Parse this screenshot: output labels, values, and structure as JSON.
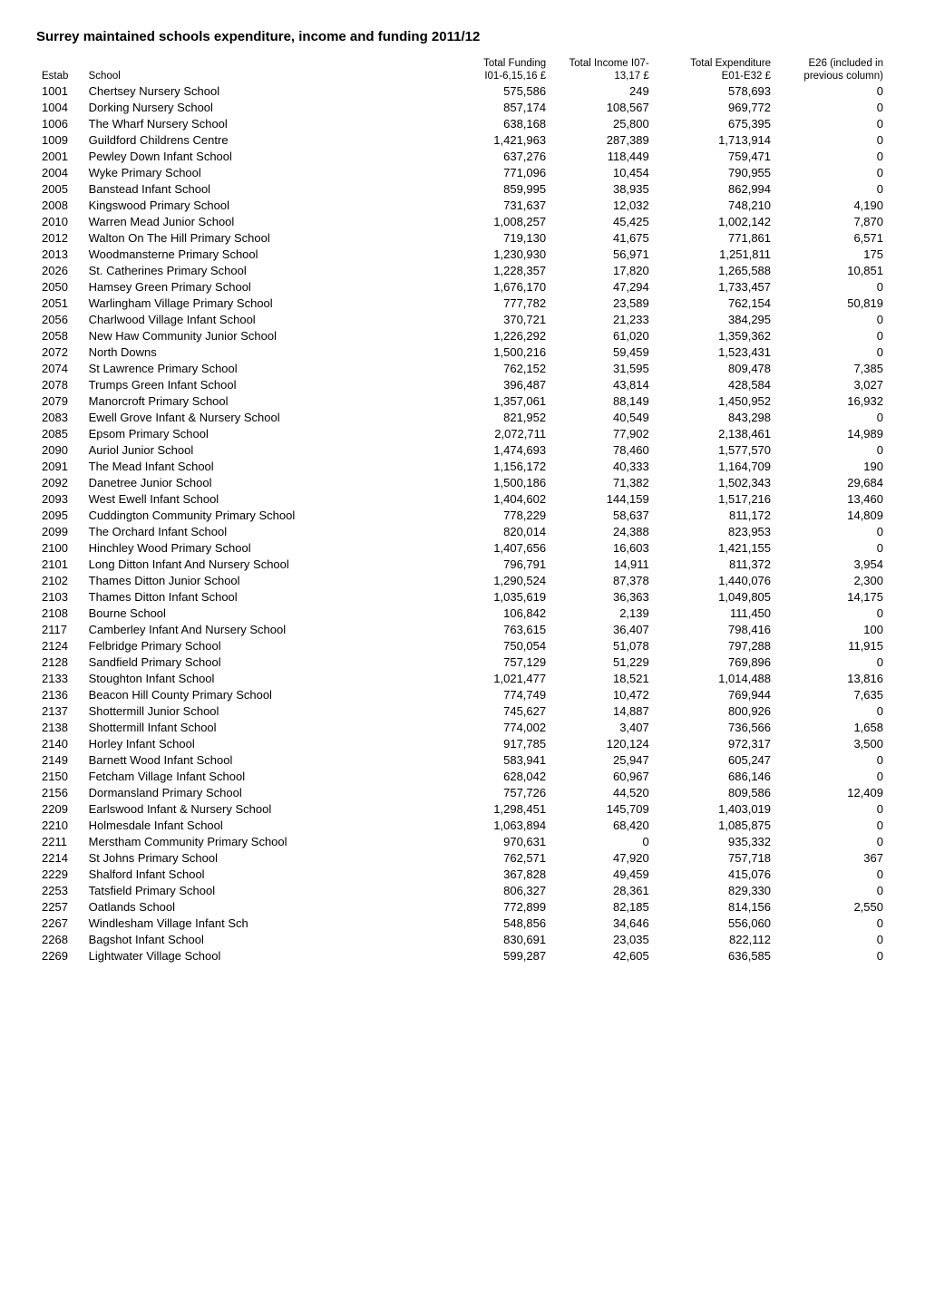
{
  "title": "Surrey maintained schools expenditure, income and funding 2011/12",
  "columns": {
    "estab": "Estab",
    "school": "School",
    "funding_top": "Total Funding",
    "funding_bot": "I01-6,15,16 £",
    "income_top": "Total Income",
    "income_mid": "I07-",
    "income_bot": "13,17 £",
    "expend_top": "Total Expenditure",
    "expend_bot": "E01-E32 £",
    "e26_top": "E26 (included in previous column)"
  },
  "rows": [
    {
      "estab": "1001",
      "school": "Chertsey Nursery School",
      "funding": "575,586",
      "income": "249",
      "expend": "578,693",
      "e26": "0"
    },
    {
      "estab": "1004",
      "school": "Dorking Nursery School",
      "funding": "857,174",
      "income": "108,567",
      "expend": "969,772",
      "e26": "0"
    },
    {
      "estab": "1006",
      "school": "The Wharf Nursery School",
      "funding": "638,168",
      "income": "25,800",
      "expend": "675,395",
      "e26": "0"
    },
    {
      "estab": "1009",
      "school": "Guildford Childrens Centre",
      "funding": "1,421,963",
      "income": "287,389",
      "expend": "1,713,914",
      "e26": "0"
    },
    {
      "estab": "2001",
      "school": "Pewley Down Infant School",
      "funding": "637,276",
      "income": "118,449",
      "expend": "759,471",
      "e26": "0"
    },
    {
      "estab": "2004",
      "school": "Wyke Primary School",
      "funding": "771,096",
      "income": "10,454",
      "expend": "790,955",
      "e26": "0"
    },
    {
      "estab": "2005",
      "school": "Banstead Infant School",
      "funding": "859,995",
      "income": "38,935",
      "expend": "862,994",
      "e26": "0"
    },
    {
      "estab": "2008",
      "school": "Kingswood Primary School",
      "funding": "731,637",
      "income": "12,032",
      "expend": "748,210",
      "e26": "4,190"
    },
    {
      "estab": "2010",
      "school": "Warren Mead Junior School",
      "funding": "1,008,257",
      "income": "45,425",
      "expend": "1,002,142",
      "e26": "7,870"
    },
    {
      "estab": "2012",
      "school": "Walton On The Hill Primary School",
      "funding": "719,130",
      "income": "41,675",
      "expend": "771,861",
      "e26": "6,571"
    },
    {
      "estab": "2013",
      "school": "Woodmansterne Primary School",
      "funding": "1,230,930",
      "income": "56,971",
      "expend": "1,251,811",
      "e26": "175"
    },
    {
      "estab": "2026",
      "school": "St. Catherines Primary School",
      "funding": "1,228,357",
      "income": "17,820",
      "expend": "1,265,588",
      "e26": "10,851"
    },
    {
      "estab": "2050",
      "school": "Hamsey Green Primary School",
      "funding": "1,676,170",
      "income": "47,294",
      "expend": "1,733,457",
      "e26": "0"
    },
    {
      "estab": "2051",
      "school": "Warlingham Village Primary School",
      "funding": "777,782",
      "income": "23,589",
      "expend": "762,154",
      "e26": "50,819"
    },
    {
      "estab": "2056",
      "school": "Charlwood Village Infant School",
      "funding": "370,721",
      "income": "21,233",
      "expend": "384,295",
      "e26": "0"
    },
    {
      "estab": "2058",
      "school": "New Haw Community Junior School",
      "funding": "1,226,292",
      "income": "61,020",
      "expend": "1,359,362",
      "e26": "0"
    },
    {
      "estab": "2072",
      "school": "North Downs",
      "funding": "1,500,216",
      "income": "59,459",
      "expend": "1,523,431",
      "e26": "0"
    },
    {
      "estab": "2074",
      "school": "St Lawrence Primary School",
      "funding": "762,152",
      "income": "31,595",
      "expend": "809,478",
      "e26": "7,385"
    },
    {
      "estab": "2078",
      "school": "Trumps Green Infant School",
      "funding": "396,487",
      "income": "43,814",
      "expend": "428,584",
      "e26": "3,027"
    },
    {
      "estab": "2079",
      "school": "Manorcroft Primary School",
      "funding": "1,357,061",
      "income": "88,149",
      "expend": "1,450,952",
      "e26": "16,932"
    },
    {
      "estab": "2083",
      "school": "Ewell Grove Infant & Nursery School",
      "funding": "821,952",
      "income": "40,549",
      "expend": "843,298",
      "e26": "0"
    },
    {
      "estab": "2085",
      "school": "Epsom Primary School",
      "funding": "2,072,711",
      "income": "77,902",
      "expend": "2,138,461",
      "e26": "14,989"
    },
    {
      "estab": "2090",
      "school": "Auriol Junior School",
      "funding": "1,474,693",
      "income": "78,460",
      "expend": "1,577,570",
      "e26": "0"
    },
    {
      "estab": "2091",
      "school": "The Mead Infant School",
      "funding": "1,156,172",
      "income": "40,333",
      "expend": "1,164,709",
      "e26": "190"
    },
    {
      "estab": "2092",
      "school": "Danetree Junior School",
      "funding": "1,500,186",
      "income": "71,382",
      "expend": "1,502,343",
      "e26": "29,684"
    },
    {
      "estab": "2093",
      "school": "West Ewell Infant School",
      "funding": "1,404,602",
      "income": "144,159",
      "expend": "1,517,216",
      "e26": "13,460"
    },
    {
      "estab": "2095",
      "school": "Cuddington Community Primary School",
      "funding": "778,229",
      "income": "58,637",
      "expend": "811,172",
      "e26": "14,809"
    },
    {
      "estab": "2099",
      "school": "The Orchard Infant School",
      "funding": "820,014",
      "income": "24,388",
      "expend": "823,953",
      "e26": "0"
    },
    {
      "estab": "2100",
      "school": "Hinchley Wood Primary School",
      "funding": "1,407,656",
      "income": "16,603",
      "expend": "1,421,155",
      "e26": "0"
    },
    {
      "estab": "2101",
      "school": "Long Ditton Infant And Nursery School",
      "funding": "796,791",
      "income": "14,911",
      "expend": "811,372",
      "e26": "3,954"
    },
    {
      "estab": "2102",
      "school": "Thames Ditton Junior School",
      "funding": "1,290,524",
      "income": "87,378",
      "expend": "1,440,076",
      "e26": "2,300"
    },
    {
      "estab": "2103",
      "school": "Thames Ditton Infant School",
      "funding": "1,035,619",
      "income": "36,363",
      "expend": "1,049,805",
      "e26": "14,175"
    },
    {
      "estab": "2108",
      "school": "Bourne School",
      "funding": "106,842",
      "income": "2,139",
      "expend": "111,450",
      "e26": "0"
    },
    {
      "estab": "2117",
      "school": "Camberley Infant And Nursery School",
      "funding": "763,615",
      "income": "36,407",
      "expend": "798,416",
      "e26": "100"
    },
    {
      "estab": "2124",
      "school": "Felbridge Primary School",
      "funding": "750,054",
      "income": "51,078",
      "expend": "797,288",
      "e26": "11,915"
    },
    {
      "estab": "2128",
      "school": "Sandfield Primary School",
      "funding": "757,129",
      "income": "51,229",
      "expend": "769,896",
      "e26": "0"
    },
    {
      "estab": "2133",
      "school": "Stoughton Infant School",
      "funding": "1,021,477",
      "income": "18,521",
      "expend": "1,014,488",
      "e26": "13,816"
    },
    {
      "estab": "2136",
      "school": "Beacon Hill County Primary School",
      "funding": "774,749",
      "income": "10,472",
      "expend": "769,944",
      "e26": "7,635"
    },
    {
      "estab": "2137",
      "school": "Shottermill Junior School",
      "funding": "745,627",
      "income": "14,887",
      "expend": "800,926",
      "e26": "0"
    },
    {
      "estab": "2138",
      "school": "Shottermill Infant School",
      "funding": "774,002",
      "income": "3,407",
      "expend": "736,566",
      "e26": "1,658"
    },
    {
      "estab": "2140",
      "school": "Horley Infant School",
      "funding": "917,785",
      "income": "120,124",
      "expend": "972,317",
      "e26": "3,500"
    },
    {
      "estab": "2149",
      "school": "Barnett Wood Infant School",
      "funding": "583,941",
      "income": "25,947",
      "expend": "605,247",
      "e26": "0"
    },
    {
      "estab": "2150",
      "school": "Fetcham Village Infant School",
      "funding": "628,042",
      "income": "60,967",
      "expend": "686,146",
      "e26": "0"
    },
    {
      "estab": "2156",
      "school": "Dormansland Primary School",
      "funding": "757,726",
      "income": "44,520",
      "expend": "809,586",
      "e26": "12,409"
    },
    {
      "estab": "2209",
      "school": "Earlswood Infant & Nursery School",
      "funding": "1,298,451",
      "income": "145,709",
      "expend": "1,403,019",
      "e26": "0"
    },
    {
      "estab": "2210",
      "school": "Holmesdale Infant School",
      "funding": "1,063,894",
      "income": "68,420",
      "expend": "1,085,875",
      "e26": "0"
    },
    {
      "estab": "2211",
      "school": "Merstham Community Primary School",
      "funding": "970,631",
      "income": "0",
      "expend": "935,332",
      "e26": "0"
    },
    {
      "estab": "2214",
      "school": "St Johns Primary School",
      "funding": "762,571",
      "income": "47,920",
      "expend": "757,718",
      "e26": "367"
    },
    {
      "estab": "2229",
      "school": "Shalford Infant School",
      "funding": "367,828",
      "income": "49,459",
      "expend": "415,076",
      "e26": "0"
    },
    {
      "estab": "2253",
      "school": "Tatsfield Primary School",
      "funding": "806,327",
      "income": "28,361",
      "expend": "829,330",
      "e26": "0"
    },
    {
      "estab": "2257",
      "school": "Oatlands School",
      "funding": "772,899",
      "income": "82,185",
      "expend": "814,156",
      "e26": "2,550"
    },
    {
      "estab": "2267",
      "school": "Windlesham Village Infant Sch",
      "funding": "548,856",
      "income": "34,646",
      "expend": "556,060",
      "e26": "0"
    },
    {
      "estab": "2268",
      "school": "Bagshot Infant School",
      "funding": "830,691",
      "income": "23,035",
      "expend": "822,112",
      "e26": "0"
    },
    {
      "estab": "2269",
      "school": "Lightwater Village School",
      "funding": "599,287",
      "income": "42,605",
      "expend": "636,585",
      "e26": "0"
    }
  ]
}
